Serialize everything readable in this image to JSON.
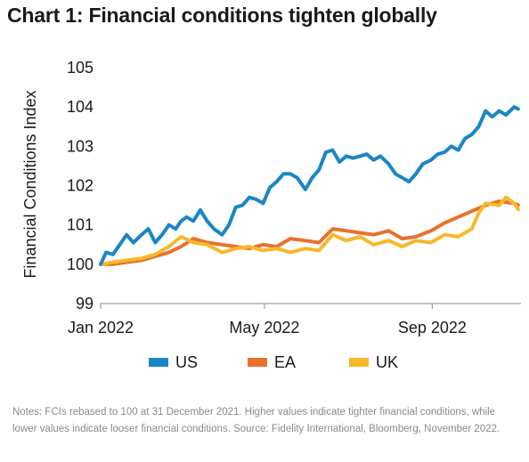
{
  "title": "Chart 1: Financial conditions tighten globally",
  "notes": "Notes: FCIs rebased to 100 at 31 December 2021. Higher values indicate tighter financial conditions, while lower values indicate looser financial conditions. Source: Fidelity International, Bloomberg, November 2022.",
  "chart_data": {
    "type": "line",
    "ylabel": "Financial Conditions Index",
    "xlabel": "",
    "ylim": [
      99,
      105
    ],
    "yticks": [
      99,
      100,
      101,
      102,
      103,
      104,
      105
    ],
    "xlim": [
      "2022-01-01",
      "2022-11-05"
    ],
    "xticks": [
      {
        "date": "2022-01-01",
        "label": "Jan 2022"
      },
      {
        "date": "2022-05-01",
        "label": "May 2022"
      },
      {
        "date": "2022-09-01",
        "label": "Sep 2022"
      }
    ],
    "legend_position": "bottom",
    "grid": false,
    "series": [
      {
        "name": "US",
        "color": "#1b86c4",
        "points": [
          [
            "2022-01-01",
            100.0
          ],
          [
            "2022-01-05",
            100.3
          ],
          [
            "2022-01-10",
            100.25
          ],
          [
            "2022-01-15",
            100.5
          ],
          [
            "2022-01-20",
            100.75
          ],
          [
            "2022-01-25",
            100.55
          ],
          [
            "2022-01-31",
            100.75
          ],
          [
            "2022-02-05",
            100.9
          ],
          [
            "2022-02-10",
            100.55
          ],
          [
            "2022-02-15",
            100.75
          ],
          [
            "2022-02-20",
            101.0
          ],
          [
            "2022-02-25",
            100.9
          ],
          [
            "2022-03-01",
            101.1
          ],
          [
            "2022-03-05",
            101.2
          ],
          [
            "2022-03-10",
            101.1
          ],
          [
            "2022-03-15",
            101.38
          ],
          [
            "2022-03-20",
            101.1
          ],
          [
            "2022-03-25",
            100.9
          ],
          [
            "2022-03-31",
            100.75
          ],
          [
            "2022-04-05",
            101.0
          ],
          [
            "2022-04-10",
            101.45
          ],
          [
            "2022-04-15",
            101.5
          ],
          [
            "2022-04-20",
            101.7
          ],
          [
            "2022-04-25",
            101.65
          ],
          [
            "2022-04-30",
            101.55
          ],
          [
            "2022-05-05",
            101.95
          ],
          [
            "2022-05-10",
            102.1
          ],
          [
            "2022-05-15",
            102.3
          ],
          [
            "2022-05-20",
            102.3
          ],
          [
            "2022-05-25",
            102.2
          ],
          [
            "2022-05-31",
            101.9
          ],
          [
            "2022-06-05",
            102.2
          ],
          [
            "2022-06-10",
            102.4
          ],
          [
            "2022-06-15",
            102.85
          ],
          [
            "2022-06-20",
            102.9
          ],
          [
            "2022-06-25",
            102.6
          ],
          [
            "2022-06-30",
            102.75
          ],
          [
            "2022-07-05",
            102.7
          ],
          [
            "2022-07-10",
            102.75
          ],
          [
            "2022-07-15",
            102.8
          ],
          [
            "2022-07-20",
            102.65
          ],
          [
            "2022-07-25",
            102.75
          ],
          [
            "2022-07-31",
            102.55
          ],
          [
            "2022-08-05",
            102.3
          ],
          [
            "2022-08-10",
            102.2
          ],
          [
            "2022-08-15",
            102.1
          ],
          [
            "2022-08-20",
            102.3
          ],
          [
            "2022-08-25",
            102.55
          ],
          [
            "2022-08-31",
            102.65
          ],
          [
            "2022-09-05",
            102.8
          ],
          [
            "2022-09-10",
            102.85
          ],
          [
            "2022-09-15",
            103.0
          ],
          [
            "2022-09-20",
            102.9
          ],
          [
            "2022-09-25",
            103.2
          ],
          [
            "2022-09-30",
            103.3
          ],
          [
            "2022-10-05",
            103.5
          ],
          [
            "2022-10-10",
            103.9
          ],
          [
            "2022-10-15",
            103.75
          ],
          [
            "2022-10-20",
            103.9
          ],
          [
            "2022-10-25",
            103.8
          ],
          [
            "2022-10-31",
            104.0
          ],
          [
            "2022-11-03",
            103.95
          ]
        ]
      },
      {
        "name": "EA",
        "color": "#e8712e",
        "points": [
          [
            "2022-01-01",
            100.0
          ],
          [
            "2022-01-10",
            100.0
          ],
          [
            "2022-01-20",
            100.05
          ],
          [
            "2022-01-31",
            100.1
          ],
          [
            "2022-02-10",
            100.2
          ],
          [
            "2022-02-20",
            100.3
          ],
          [
            "2022-03-01",
            100.45
          ],
          [
            "2022-03-10",
            100.65
          ],
          [
            "2022-03-20",
            100.55
          ],
          [
            "2022-03-31",
            100.5
          ],
          [
            "2022-04-10",
            100.45
          ],
          [
            "2022-04-20",
            100.4
          ],
          [
            "2022-04-30",
            100.5
          ],
          [
            "2022-05-10",
            100.45
          ],
          [
            "2022-05-20",
            100.65
          ],
          [
            "2022-05-31",
            100.6
          ],
          [
            "2022-06-10",
            100.55
          ],
          [
            "2022-06-20",
            100.9
          ],
          [
            "2022-06-30",
            100.85
          ],
          [
            "2022-07-10",
            100.8
          ],
          [
            "2022-07-20",
            100.75
          ],
          [
            "2022-07-31",
            100.85
          ],
          [
            "2022-08-10",
            100.65
          ],
          [
            "2022-08-20",
            100.7
          ],
          [
            "2022-08-31",
            100.85
          ],
          [
            "2022-09-10",
            101.05
          ],
          [
            "2022-09-20",
            101.2
          ],
          [
            "2022-09-30",
            101.35
          ],
          [
            "2022-10-10",
            101.5
          ],
          [
            "2022-10-20",
            101.6
          ],
          [
            "2022-10-31",
            101.55
          ],
          [
            "2022-11-03",
            101.5
          ]
        ]
      },
      {
        "name": "UK",
        "color": "#f6b92b",
        "points": [
          [
            "2022-01-01",
            100.0
          ],
          [
            "2022-01-10",
            100.05
          ],
          [
            "2022-01-20",
            100.1
          ],
          [
            "2022-01-31",
            100.15
          ],
          [
            "2022-02-10",
            100.25
          ],
          [
            "2022-02-20",
            100.45
          ],
          [
            "2022-03-01",
            100.7
          ],
          [
            "2022-03-10",
            100.55
          ],
          [
            "2022-03-20",
            100.5
          ],
          [
            "2022-03-31",
            100.3
          ],
          [
            "2022-04-10",
            100.4
          ],
          [
            "2022-04-20",
            100.45
          ],
          [
            "2022-04-30",
            100.35
          ],
          [
            "2022-05-10",
            100.4
          ],
          [
            "2022-05-20",
            100.3
          ],
          [
            "2022-05-31",
            100.4
          ],
          [
            "2022-06-10",
            100.35
          ],
          [
            "2022-06-20",
            100.75
          ],
          [
            "2022-06-30",
            100.6
          ],
          [
            "2022-07-10",
            100.7
          ],
          [
            "2022-07-20",
            100.5
          ],
          [
            "2022-07-31",
            100.6
          ],
          [
            "2022-08-10",
            100.45
          ],
          [
            "2022-08-20",
            100.6
          ],
          [
            "2022-08-31",
            100.55
          ],
          [
            "2022-09-10",
            100.75
          ],
          [
            "2022-09-20",
            100.7
          ],
          [
            "2022-09-30",
            100.9
          ],
          [
            "2022-10-05",
            101.3
          ],
          [
            "2022-10-10",
            101.55
          ],
          [
            "2022-10-20",
            101.5
          ],
          [
            "2022-10-25",
            101.7
          ],
          [
            "2022-10-31",
            101.55
          ],
          [
            "2022-11-03",
            101.4
          ]
        ]
      }
    ]
  }
}
